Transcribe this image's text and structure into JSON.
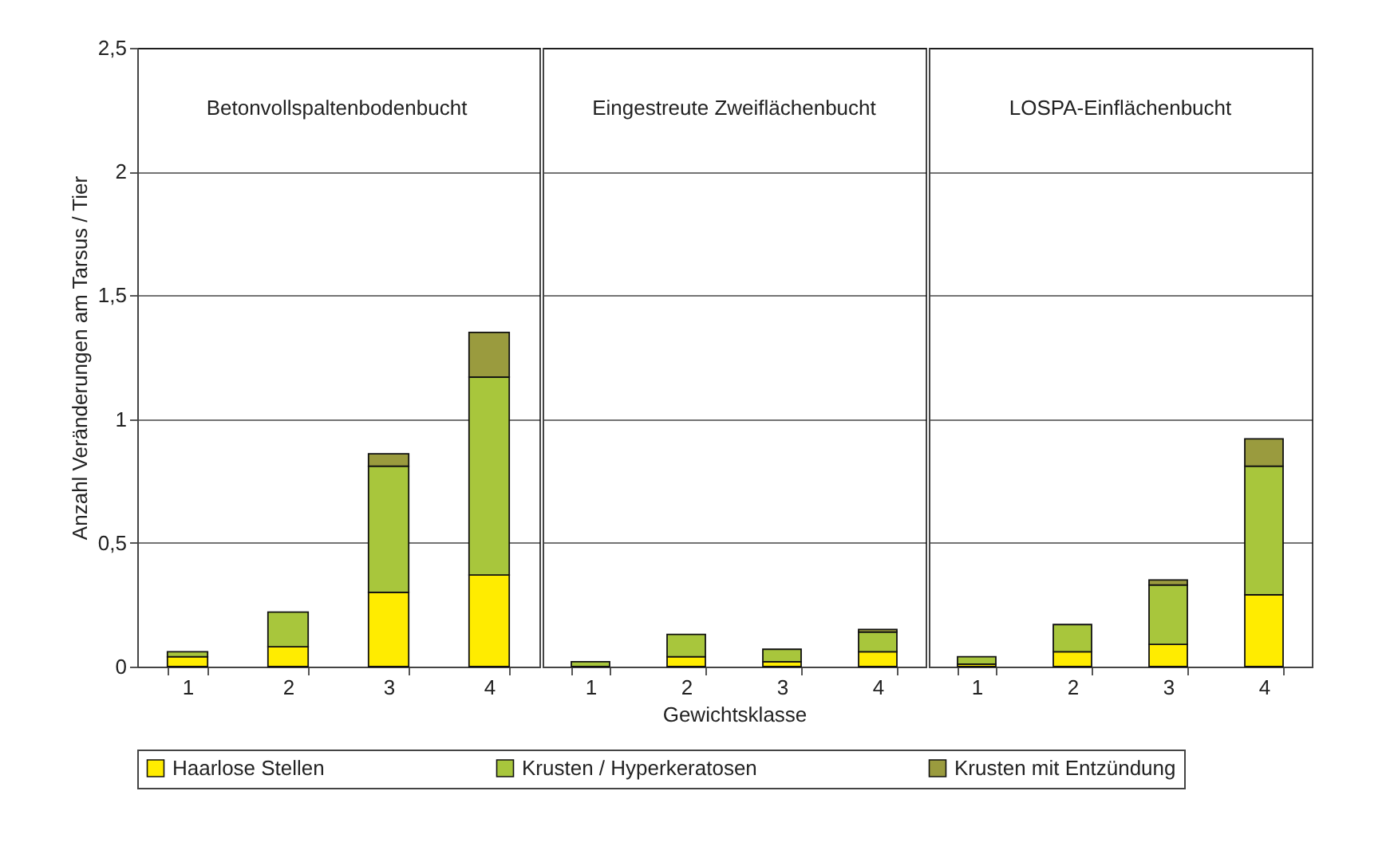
{
  "chart_data": [
    {
      "type": "bar",
      "title": "Betonvollspaltenbodenbucht",
      "ylabel": "Anzahl Veränderungen am Tarsus / Tier",
      "categories": [
        "1",
        "2",
        "3",
        "4"
      ],
      "stacked": true,
      "ylim": [
        0,
        2.5
      ],
      "yticks": [
        {
          "value": 0,
          "label": "0"
        },
        {
          "value": 0.5,
          "label": "0,5"
        },
        {
          "value": 1,
          "label": "1"
        },
        {
          "value": 1.5,
          "label": "1,5"
        },
        {
          "value": 2,
          "label": "2"
        },
        {
          "value": 2.5,
          "label": "2,5"
        }
      ],
      "grid": "y",
      "legend": "bottom",
      "series": [
        {
          "name": "Haarlose Stellen",
          "color": "#ffec00",
          "values": [
            0.04,
            0.08,
            0.3,
            0.37
          ]
        },
        {
          "name": "Krusten / Hyperkeratosen",
          "color": "#a8c63c",
          "values": [
            0.02,
            0.14,
            0.51,
            0.8
          ]
        },
        {
          "name": "Krusten mit Entzündung",
          "color": "#9a9b3e",
          "values": [
            null,
            null,
            0.05,
            0.18
          ]
        }
      ]
    },
    {
      "type": "bar",
      "title": "Eingestreute Zweiflächenbucht",
      "xlabel": "Gewichtsklasse",
      "categories": [
        "1",
        "2",
        "3",
        "4"
      ],
      "stacked": true,
      "ylim": [
        0,
        2.5
      ],
      "yticks": [
        0,
        0.5,
        1,
        1.5,
        2,
        2.5
      ],
      "grid": "y",
      "tick_labels": "x",
      "series": [
        {
          "color": "#ffec00",
          "values": [
            null,
            0.04,
            0.02,
            0.06
          ]
        },
        {
          "color": "#a8c63c",
          "values": [
            0.02,
            0.09,
            0.05,
            0.08
          ]
        },
        {
          "color": "#9a9b3e",
          "values": [
            null,
            null,
            null,
            0.01
          ]
        }
      ]
    },
    {
      "type": "bar",
      "title": "LOSPA-Einflächenbucht",
      "categories": [
        "1",
        "2",
        "3",
        "4"
      ],
      "stacked": true,
      "ylim": [
        0,
        2.5
      ],
      "yticks": [
        0,
        0.5,
        1,
        1.5,
        2,
        2.5
      ],
      "grid": "y",
      "tick_labels": "x",
      "series": [
        {
          "color": "#ffec00",
          "values": [
            0.01,
            0.06,
            0.09,
            0.29
          ]
        },
        {
          "color": "#a8c63c",
          "values": [
            0.03,
            0.11,
            0.24,
            0.52
          ]
        },
        {
          "color": "#9a9b3e",
          "values": [
            null,
            null,
            0.02,
            0.11
          ]
        }
      ]
    }
  ]
}
